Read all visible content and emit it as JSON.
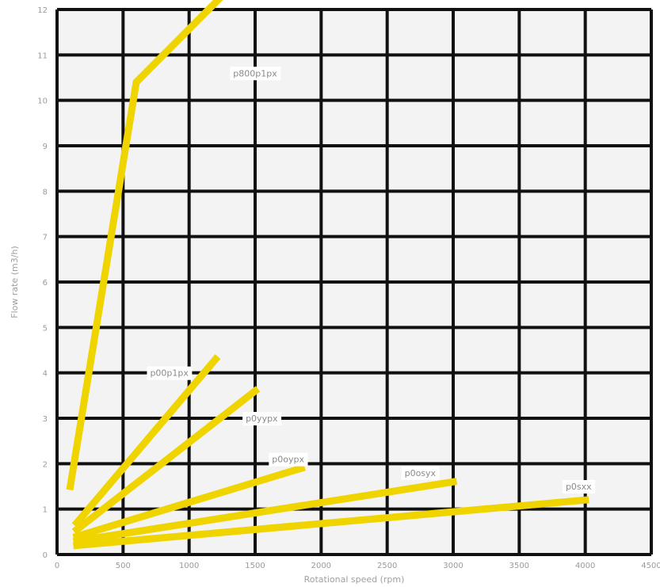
{
  "chart_data": {
    "type": "line",
    "xlabel": "Rotational speed (rpm)",
    "ylabel": "Flow rate (m3/h)",
    "xlim": [
      0,
      4500
    ],
    "ylim": [
      0,
      12
    ],
    "x_ticks": [
      0,
      500,
      1000,
      1500,
      2000,
      2500,
      3000,
      3500,
      4000,
      4500
    ],
    "y_ticks": [
      0,
      1,
      2,
      3,
      4,
      5,
      6,
      7,
      8,
      9,
      10,
      11,
      12
    ],
    "grid": true,
    "background": "#f3f3f3",
    "grid_color": "#111111",
    "line_color": "#f0d400",
    "series": [
      {
        "label": "p800p1px",
        "points": [
          [
            100,
            1.5
          ],
          [
            600,
            10.4
          ],
          [
            1250,
            12.3
          ]
        ],
        "label_at": [
          1500,
          10.6
        ]
      },
      {
        "label": "p00p1px",
        "points": [
          [
            150,
            0.7
          ],
          [
            1200,
            4.3
          ]
        ],
        "label_at": [
          850,
          4.0
        ]
      },
      {
        "label": "p0yypx",
        "points": [
          [
            150,
            0.55
          ],
          [
            1500,
            3.6
          ]
        ],
        "label_at": [
          1550,
          3.0
        ]
      },
      {
        "label": "p0oypx",
        "points": [
          [
            150,
            0.4
          ],
          [
            1850,
            1.9
          ]
        ],
        "label_at": [
          1750,
          2.1
        ]
      },
      {
        "label": "p0osyx",
        "points": [
          [
            150,
            0.3
          ],
          [
            3000,
            1.6
          ]
        ],
        "label_at": [
          2750,
          1.8
        ]
      },
      {
        "label": "p0sxx",
        "points": [
          [
            150,
            0.2
          ],
          [
            4000,
            1.2
          ]
        ],
        "label_at": [
          3950,
          1.5
        ]
      }
    ]
  }
}
